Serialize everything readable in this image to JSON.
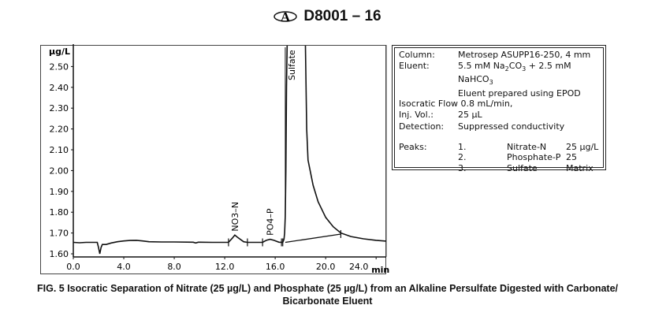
{
  "header": {
    "logo": "ASTM",
    "designation": "D8001 – 16"
  },
  "chart_data": {
    "type": "line",
    "ylabel": "µg/L",
    "xlabel": "min",
    "xlim": [
      0,
      24.8
    ],
    "ylim": [
      1.585,
      2.6
    ],
    "xticks": [
      "0.0",
      "4.0",
      "8.0",
      "12.0",
      "16.0",
      "20.0",
      "24.0"
    ],
    "xtick_values": [
      0,
      4,
      8,
      12,
      16,
      20,
      24
    ],
    "yticks": [
      "1.60",
      "1.70",
      "1.80",
      "1.90",
      "2.00",
      "2.10",
      "2.20",
      "2.30",
      "2.40",
      "2.50"
    ],
    "ytick_values": [
      1.6,
      1.7,
      1.8,
      1.9,
      2.0,
      2.1,
      2.2,
      2.3,
      2.4,
      2.5
    ],
    "grid": false,
    "series": [
      {
        "points": [
          [
            0,
            1.655
          ],
          [
            0.5,
            1.653
          ],
          [
            1.0,
            1.655
          ],
          [
            1.9,
            1.655
          ],
          [
            2.0,
            1.63
          ],
          [
            2.1,
            1.6
          ],
          [
            2.2,
            1.63
          ],
          [
            2.3,
            1.645
          ],
          [
            2.6,
            1.645
          ],
          [
            3.0,
            1.652
          ],
          [
            3.5,
            1.658
          ],
          [
            4.0,
            1.662
          ],
          [
            4.5,
            1.664
          ],
          [
            5.0,
            1.665
          ],
          [
            5.5,
            1.662
          ],
          [
            6.0,
            1.658
          ],
          [
            7.0,
            1.657
          ],
          [
            8.0,
            1.657
          ],
          [
            9.5,
            1.656
          ],
          [
            9.7,
            1.652
          ],
          [
            9.9,
            1.656
          ],
          [
            11.0,
            1.655
          ],
          [
            12.3,
            1.655
          ],
          [
            12.6,
            1.675
          ],
          [
            12.8,
            1.69
          ],
          [
            13.0,
            1.68
          ],
          [
            13.5,
            1.658
          ],
          [
            13.8,
            1.655
          ],
          [
            15.0,
            1.655
          ],
          [
            15.3,
            1.665
          ],
          [
            15.6,
            1.67
          ],
          [
            15.9,
            1.665
          ],
          [
            16.3,
            1.656
          ],
          [
            16.6,
            1.655
          ],
          [
            16.7,
            1.67
          ],
          [
            16.75,
            1.7
          ],
          [
            16.8,
            1.78
          ],
          [
            16.85,
            2.0
          ],
          [
            16.9,
            2.4
          ],
          [
            17.0,
            2.8
          ],
          [
            18.3,
            2.8
          ],
          [
            18.4,
            2.6
          ],
          [
            18.5,
            2.2
          ],
          [
            18.6,
            2.05
          ],
          [
            19.0,
            1.93
          ],
          [
            19.4,
            1.85
          ],
          [
            20.0,
            1.775
          ],
          [
            20.6,
            1.73
          ],
          [
            21.2,
            1.7
          ],
          [
            22.0,
            1.683
          ],
          [
            23.0,
            1.672
          ],
          [
            24.0,
            1.665
          ],
          [
            24.8,
            1.661
          ]
        ]
      }
    ],
    "integration_baseline": [
      [
        16.8,
        1.655
      ],
      [
        21.2,
        1.695
      ]
    ],
    "integration_marks": [
      12.3,
      13.8,
      15.0,
      16.5,
      16.6,
      21.2
    ],
    "annotations": [
      {
        "label": "NO3–N",
        "x": 12.8,
        "y": 1.7
      },
      {
        "label": "PO4–P",
        "x": 15.6,
        "y": 1.68
      },
      {
        "label": "Sulfate",
        "x": 16.8,
        "y": 2.6
      }
    ]
  },
  "legend": {
    "column_label": "Column:",
    "column_value": "Metrosep ASUPP16-250, 4 mm",
    "eluent_label": "Eluent:",
    "eluent_value_1a": "5.5 mM Na",
    "eluent_value_1b": "2",
    "eluent_value_1c": "CO",
    "eluent_value_1d": "3",
    "eluent_value_1e": " + 2.5 mM NaHCO",
    "eluent_value_1f": "3",
    "eluent_value_2": "Eluent prepared using EPOD",
    "flow_label": "Isocratic Flow",
    "flow_value": "0.8 mL/min,",
    "inj_label": "Inj. Vol.:",
    "inj_value": "25 µL",
    "detection_label": "Detection:",
    "detection_value": "Suppressed conductivity",
    "peaks_label": "Peaks:",
    "peaks": [
      {
        "num": "1.",
        "name": "Nitrate-N",
        "amount": "25 µg/L"
      },
      {
        "num": "2.",
        "name": "Phosphate-P",
        "amount": "25"
      },
      {
        "num": "3.",
        "name": "Sulfate",
        "amount": "Matrix"
      }
    ]
  },
  "caption": {
    "line1": "FIG. 5 Isocratic Separation of Nitrate (25 µg/L) and Phosphate (25 µg/L) from an Alkaline Persulfate Digested with Carbonate/",
    "line2": "Bicarbonate Eluent"
  }
}
